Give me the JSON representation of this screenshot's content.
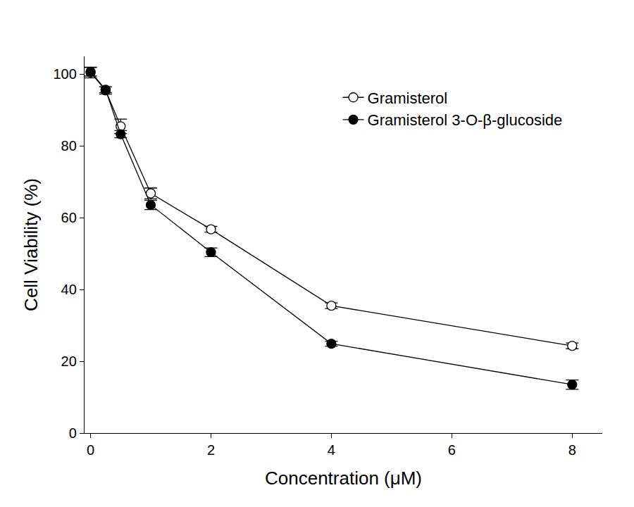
{
  "chart_data": {
    "type": "line",
    "x_label": "Concentration (μM)",
    "y_label": "Cell Viability (%)",
    "xlim": [
      -0.1,
      8.5
    ],
    "xticks": [
      0,
      2,
      4,
      6,
      8
    ],
    "ylim": [
      0,
      105
    ],
    "yticks": [
      0,
      20,
      40,
      60,
      80,
      100
    ],
    "grid": false,
    "legend": "upper right",
    "x": [
      0,
      0.25,
      0.5,
      1,
      2,
      4,
      8
    ],
    "series": [
      {
        "name": "Gramisterol",
        "color": "#000000",
        "marker": "open circle",
        "line_style": "solid",
        "values": [
          100.5,
          95.5,
          85.5,
          66.8,
          56.8,
          35.5,
          24.3
        ],
        "errors": [
          1.5,
          1.0,
          2.0,
          1.5,
          0.8,
          0.8,
          0.8
        ]
      },
      {
        "name": "Gramisterol 3-O-β-glucoside",
        "color": "#000000",
        "marker": "filled circle",
        "line_style": "solid",
        "values": [
          100.7,
          95.7,
          83.3,
          63.6,
          50.4,
          24.9,
          13.5
        ],
        "errors": [
          1.2,
          0.8,
          1.0,
          1.3,
          1.2,
          0.7,
          1.3
        ]
      }
    ]
  }
}
